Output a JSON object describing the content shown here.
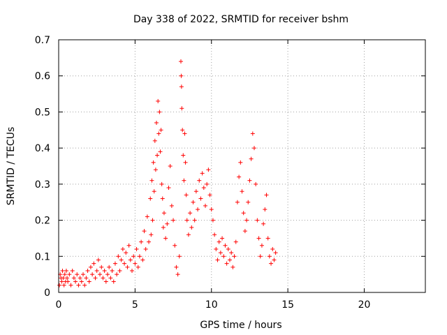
{
  "chart_data": {
    "type": "scatter",
    "title": "Day 338 of 2022, SRMTID for receiver bshm",
    "xlabel": "GPS time / hours",
    "ylabel": "SRMTID / TECUs",
    "xlim": [
      0,
      24
    ],
    "ylim": [
      0,
      0.7
    ],
    "xticks": [
      0,
      5,
      10,
      15,
      20
    ],
    "yticks": [
      0,
      0.1,
      0.2,
      0.3,
      0.4,
      0.5,
      0.6,
      0.7
    ],
    "xtick_labels": [
      "0",
      "5",
      "10",
      "15",
      "20"
    ],
    "ytick_labels": [
      "0",
      "0.1",
      "0.2",
      "0.3",
      "0.4",
      "0.5",
      "0.6",
      "0.7"
    ],
    "grid": true,
    "marker": "+",
    "color": "#ff0000",
    "series": [
      {
        "name": "bshm",
        "points": [
          [
            0.05,
            0.02
          ],
          [
            0.1,
            0.05
          ],
          [
            0.15,
            0.04
          ],
          [
            0.2,
            0.03
          ],
          [
            0.25,
            0.06
          ],
          [
            0.3,
            0.04
          ],
          [
            0.35,
            0.02
          ],
          [
            0.4,
            0.05
          ],
          [
            0.45,
            0.03
          ],
          [
            0.5,
            0.06
          ],
          [
            0.55,
            0.04
          ],
          [
            0.6,
            0.03
          ],
          [
            0.7,
            0.05
          ],
          [
            0.8,
            0.02
          ],
          [
            0.9,
            0.06
          ],
          [
            1.0,
            0.04
          ],
          [
            1.1,
            0.03
          ],
          [
            1.2,
            0.05
          ],
          [
            1.3,
            0.02
          ],
          [
            1.4,
            0.04
          ],
          [
            1.5,
            0.03
          ],
          [
            1.6,
            0.05
          ],
          [
            1.7,
            0.02
          ],
          [
            1.8,
            0.04
          ],
          [
            1.9,
            0.06
          ],
          [
            2.0,
            0.03
          ],
          [
            2.1,
            0.07
          ],
          [
            2.2,
            0.05
          ],
          [
            2.3,
            0.08
          ],
          [
            2.4,
            0.04
          ],
          [
            2.5,
            0.06
          ],
          [
            2.6,
            0.09
          ],
          [
            2.7,
            0.05
          ],
          [
            2.8,
            0.07
          ],
          [
            2.9,
            0.04
          ],
          [
            3.0,
            0.06
          ],
          [
            3.1,
            0.03
          ],
          [
            3.2,
            0.05
          ],
          [
            3.3,
            0.07
          ],
          [
            3.4,
            0.04
          ],
          [
            3.5,
            0.06
          ],
          [
            3.6,
            0.03
          ],
          [
            3.7,
            0.08
          ],
          [
            3.8,
            0.05
          ],
          [
            3.9,
            0.1
          ],
          [
            4.0,
            0.06
          ],
          [
            4.1,
            0.09
          ],
          [
            4.2,
            0.12
          ],
          [
            4.3,
            0.08
          ],
          [
            4.4,
            0.11
          ],
          [
            4.5,
            0.07
          ],
          [
            4.6,
            0.13
          ],
          [
            4.7,
            0.09
          ],
          [
            4.8,
            0.06
          ],
          [
            4.9,
            0.1
          ],
          [
            5.0,
            0.08
          ],
          [
            5.1,
            0.12
          ],
          [
            5.2,
            0.07
          ],
          [
            5.3,
            0.1
          ],
          [
            5.4,
            0.14
          ],
          [
            5.5,
            0.09
          ],
          [
            5.6,
            0.17
          ],
          [
            5.7,
            0.12
          ],
          [
            5.8,
            0.21
          ],
          [
            5.9,
            0.14
          ],
          [
            6.0,
            0.26
          ],
          [
            6.05,
            0.16
          ],
          [
            6.1,
            0.31
          ],
          [
            6.15,
            0.2
          ],
          [
            6.2,
            0.36
          ],
          [
            6.25,
            0.28
          ],
          [
            6.3,
            0.42
          ],
          [
            6.35,
            0.34
          ],
          [
            6.4,
            0.47
          ],
          [
            6.45,
            0.38
          ],
          [
            6.5,
            0.53
          ],
          [
            6.55,
            0.44
          ],
          [
            6.6,
            0.5
          ],
          [
            6.65,
            0.39
          ],
          [
            6.7,
            0.45
          ],
          [
            6.75,
            0.3
          ],
          [
            6.8,
            0.26
          ],
          [
            6.85,
            0.18
          ],
          [
            6.9,
            0.22
          ],
          [
            7.0,
            0.15
          ],
          [
            7.1,
            0.19
          ],
          [
            7.2,
            0.29
          ],
          [
            7.3,
            0.35
          ],
          [
            7.4,
            0.24
          ],
          [
            7.5,
            0.2
          ],
          [
            7.6,
            0.13
          ],
          [
            7.7,
            0.07
          ],
          [
            7.8,
            0.05
          ],
          [
            7.9,
            0.1
          ],
          [
            8.0,
            0.64
          ],
          [
            8.02,
            0.6
          ],
          [
            8.04,
            0.57
          ],
          [
            8.06,
            0.51
          ],
          [
            8.1,
            0.45
          ],
          [
            8.15,
            0.38
          ],
          [
            8.2,
            0.31
          ],
          [
            8.25,
            0.44
          ],
          [
            8.3,
            0.36
          ],
          [
            8.35,
            0.27
          ],
          [
            8.4,
            0.2
          ],
          [
            8.5,
            0.16
          ],
          [
            8.6,
            0.22
          ],
          [
            8.7,
            0.18
          ],
          [
            8.8,
            0.25
          ],
          [
            8.9,
            0.2
          ],
          [
            9.0,
            0.28
          ],
          [
            9.1,
            0.23
          ],
          [
            9.2,
            0.31
          ],
          [
            9.3,
            0.26
          ],
          [
            9.4,
            0.33
          ],
          [
            9.5,
            0.29
          ],
          [
            9.6,
            0.24
          ],
          [
            9.7,
            0.3
          ],
          [
            9.8,
            0.34
          ],
          [
            9.9,
            0.27
          ],
          [
            10.0,
            0.23
          ],
          [
            10.1,
            0.2
          ],
          [
            10.2,
            0.16
          ],
          [
            10.3,
            0.12
          ],
          [
            10.4,
            0.09
          ],
          [
            10.5,
            0.14
          ],
          [
            10.6,
            0.11
          ],
          [
            10.7,
            0.15
          ],
          [
            10.8,
            0.1
          ],
          [
            10.9,
            0.13
          ],
          [
            11.0,
            0.08
          ],
          [
            11.1,
            0.12
          ],
          [
            11.2,
            0.09
          ],
          [
            11.3,
            0.11
          ],
          [
            11.4,
            0.07
          ],
          [
            11.5,
            0.1
          ],
          [
            11.6,
            0.14
          ],
          [
            11.7,
            0.25
          ],
          [
            11.8,
            0.32
          ],
          [
            11.9,
            0.36
          ],
          [
            12.0,
            0.28
          ],
          [
            12.1,
            0.22
          ],
          [
            12.2,
            0.17
          ],
          [
            12.3,
            0.2
          ],
          [
            12.4,
            0.25
          ],
          [
            12.5,
            0.31
          ],
          [
            12.6,
            0.37
          ],
          [
            12.7,
            0.44
          ],
          [
            12.8,
            0.4
          ],
          [
            12.9,
            0.3
          ],
          [
            13.0,
            0.2
          ],
          [
            13.1,
            0.15
          ],
          [
            13.2,
            0.1
          ],
          [
            13.3,
            0.13
          ],
          [
            13.4,
            0.19
          ],
          [
            13.5,
            0.23
          ],
          [
            13.6,
            0.27
          ],
          [
            13.7,
            0.15
          ],
          [
            13.8,
            0.1
          ],
          [
            13.9,
            0.08
          ],
          [
            14.0,
            0.12
          ],
          [
            14.1,
            0.09
          ],
          [
            14.2,
            0.11
          ]
        ]
      }
    ]
  }
}
